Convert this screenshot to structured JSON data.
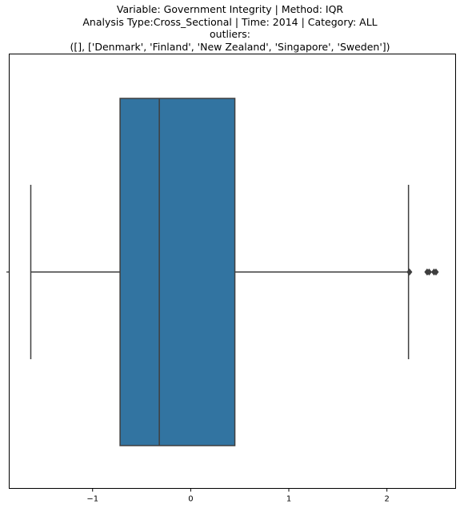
{
  "chart_data": {
    "type": "boxplot",
    "orientation": "horizontal",
    "title_lines": [
      "Variable: Government Integrity | Method: IQR",
      "Analysis Type:Cross_Sectional | Time: 2014 | Category: ALL",
      "outliers:",
      "([], ['Denmark', 'Finland', 'New Zealand', 'Singapore', 'Sweden'])"
    ],
    "xlim": [
      -1.85,
      2.7
    ],
    "xticks": [
      -1,
      0,
      1,
      2
    ],
    "xtick_labels": [
      "−1",
      "0",
      "1",
      "2"
    ],
    "box": {
      "whisker_low": -1.63,
      "q1": -0.72,
      "median": -0.32,
      "q3": 0.45,
      "whisker_high": 2.22
    },
    "outliers": [
      2.23,
      2.41,
      2.43,
      2.48,
      2.5
    ],
    "box_color": "#3274a1",
    "line_color": "#3f3f3f"
  }
}
